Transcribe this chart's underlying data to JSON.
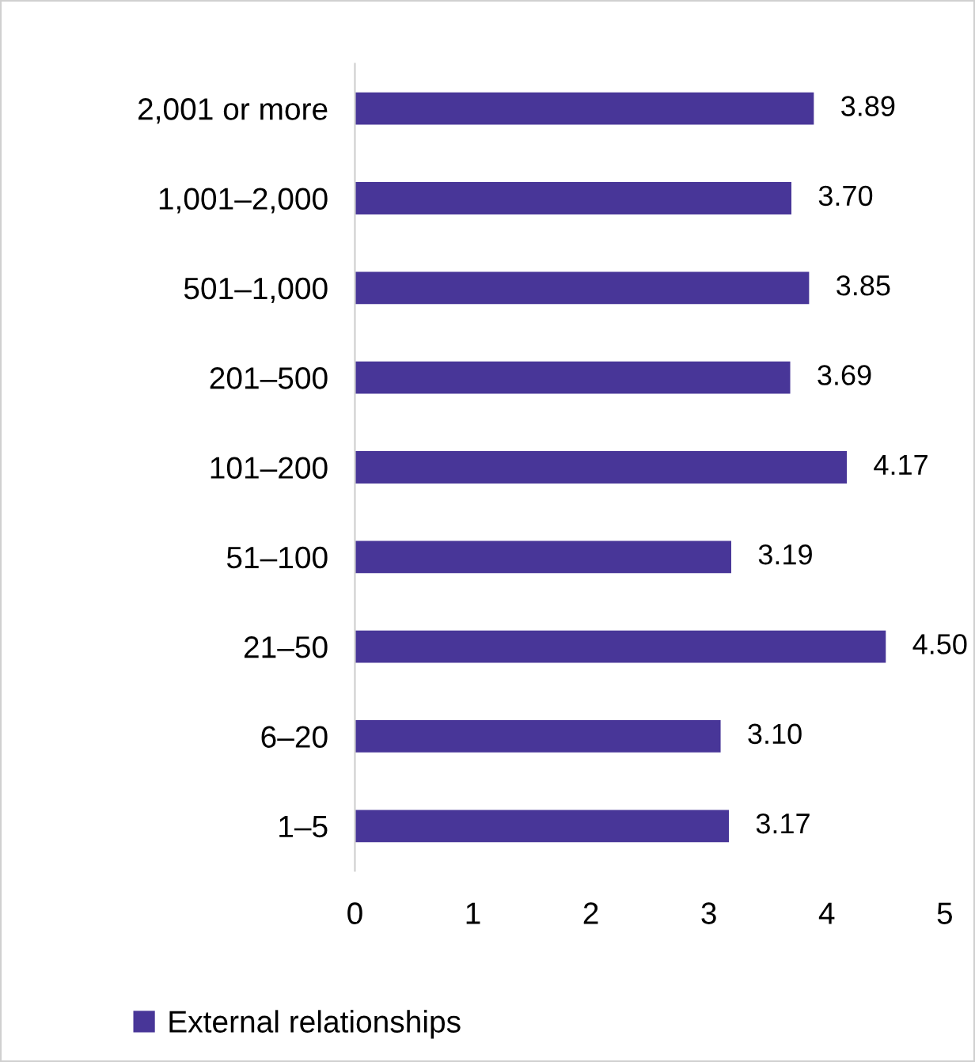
{
  "chart_data": {
    "type": "bar",
    "orientation": "horizontal",
    "categories": [
      "2,001 or more",
      "1,001–2,000",
      "501–1,000",
      "201–500",
      "101–200",
      "51–100",
      "21–50",
      "6–20",
      "1–5"
    ],
    "series": [
      {
        "name": "External relationships",
        "color": "#483698",
        "values": [
          3.89,
          3.7,
          3.85,
          3.69,
          4.17,
          3.19,
          4.5,
          3.1,
          3.17
        ]
      }
    ],
    "value_labels": [
      "3.89",
      "3.70",
      "3.85",
      "3.69",
      "4.17",
      "3.19",
      "4.50",
      "3.10",
      "3.17"
    ],
    "xlim": [
      0,
      5
    ],
    "xticks": [
      0,
      1,
      2,
      3,
      4,
      5
    ],
    "grid": false,
    "legend": "bottom"
  }
}
